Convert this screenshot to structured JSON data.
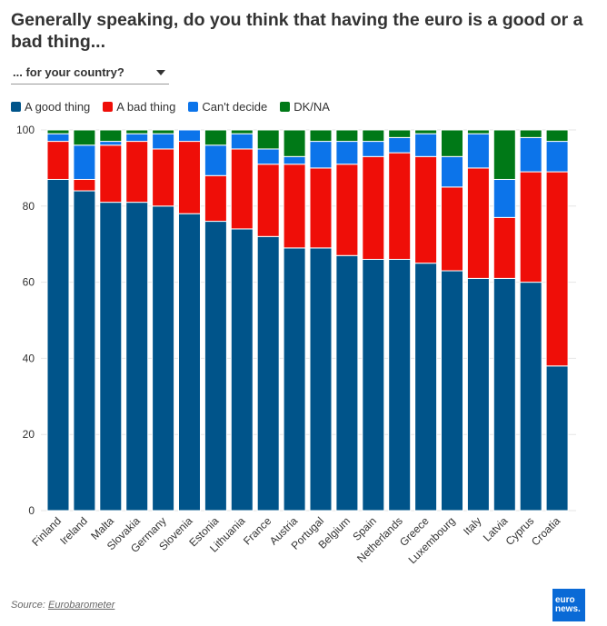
{
  "title": "Generally speaking, do you think that having the euro is a good or a bad thing...",
  "dropdown": {
    "selected": "... for your country?"
  },
  "source": {
    "label": "Source:",
    "link": "Eurobarometer"
  },
  "logo": "euronews.",
  "chart_data": {
    "type": "bar",
    "stacked": true,
    "categories": [
      "Finland",
      "Ireland",
      "Malta",
      "Slovakia",
      "Germany",
      "Slovenia",
      "Estonia",
      "Lithuania",
      "France",
      "Austria",
      "Portugal",
      "Belgium",
      "Spain",
      "Netherlands",
      "Greece",
      "Luxembourg",
      "Italy",
      "Latvia",
      "Cyprus",
      "Croatia"
    ],
    "series": [
      {
        "name": "A good thing",
        "color": "#00548a",
        "values": [
          87,
          84,
          81,
          81,
          80,
          78,
          76,
          74,
          72,
          69,
          69,
          67,
          66,
          66,
          65,
          63,
          61,
          61,
          60,
          38
        ]
      },
      {
        "name": "A bad thing",
        "color": "#ef0e08",
        "values": [
          10,
          3,
          15,
          16,
          15,
          19,
          12,
          21,
          19,
          22,
          21,
          24,
          27,
          28,
          28,
          22,
          29,
          16,
          29,
          51
        ]
      },
      {
        "name": "Can't decide",
        "color": "#0c74ea",
        "values": [
          2,
          9,
          1,
          2,
          4,
          3,
          8,
          4,
          4,
          2,
          7,
          6,
          4,
          4,
          6,
          8,
          9,
          10,
          9,
          8
        ]
      },
      {
        "name": "DK/NA",
        "color": "#007917",
        "values": [
          1,
          4,
          3,
          1,
          1,
          0,
          4,
          1,
          5,
          7,
          3,
          3,
          3,
          2,
          1,
          7,
          1,
          13,
          2,
          3
        ]
      }
    ],
    "ylim": [
      0,
      100
    ],
    "yticks": [
      0,
      20,
      40,
      60,
      80,
      100
    ],
    "grid": true,
    "legend": "top-left"
  }
}
